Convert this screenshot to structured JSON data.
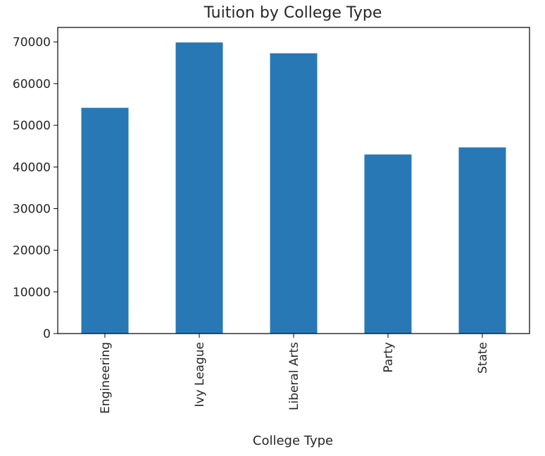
{
  "chart_data": {
    "type": "bar",
    "title": "Tuition by College Type",
    "xlabel": "College Type",
    "ylabel": "",
    "categories": [
      "Engineering",
      "Ivy League",
      "Liberal Arts",
      "Party",
      "State"
    ],
    "values": [
      54200,
      69900,
      67300,
      43000,
      44700
    ],
    "ylim": [
      0,
      73500
    ],
    "yticks": [
      0,
      10000,
      20000,
      30000,
      40000,
      50000,
      60000,
      70000
    ],
    "bar_color": "#2878b5",
    "grid": false,
    "legend": "none"
  }
}
